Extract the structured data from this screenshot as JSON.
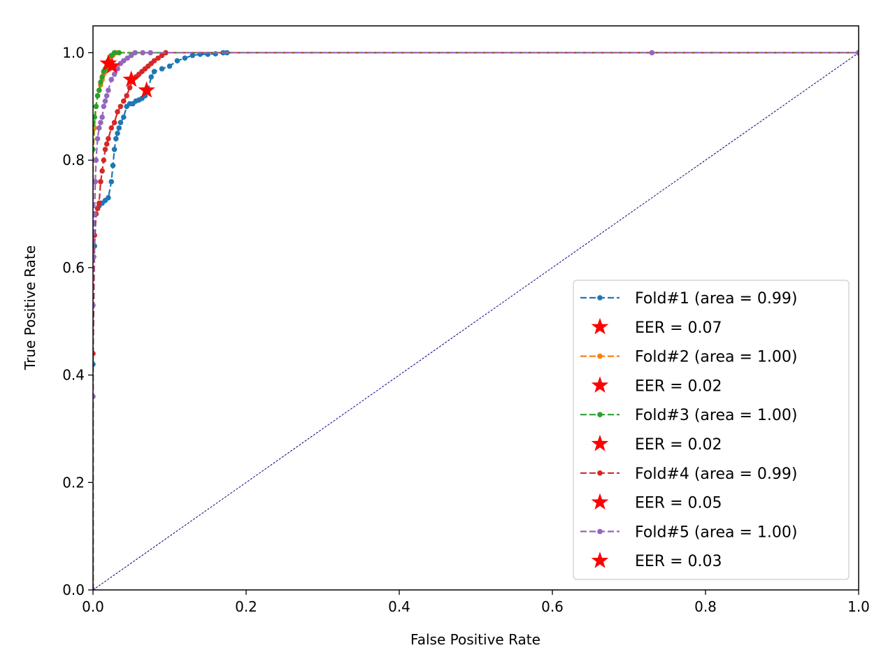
{
  "chart_data": {
    "type": "line",
    "title": "",
    "xlabel": "False Positive Rate",
    "ylabel": "True Positive Rate",
    "xlim": [
      0.0,
      1.0
    ],
    "ylim": [
      0.0,
      1.05
    ],
    "xticks": [
      "0.0",
      "0.2",
      "0.4",
      "0.6",
      "0.8",
      "1.0"
    ],
    "yticks": [
      "0.0",
      "0.2",
      "0.4",
      "0.6",
      "0.8",
      "1.0"
    ],
    "grid": false,
    "legend_position": "lower right",
    "chance_line": {
      "x": [
        0,
        1
      ],
      "y": [
        0,
        1
      ],
      "color": "#000080"
    },
    "series": [
      {
        "name": "Fold#1 (area = 0.99)",
        "color": "#1f77b4",
        "eer_label": "EER = 0.07",
        "eer_point": [
          0.07,
          0.93
        ],
        "x": [
          0.0,
          0.0,
          0.002,
          0.004,
          0.006,
          0.008,
          0.01,
          0.012,
          0.016,
          0.02,
          0.024,
          0.026,
          0.028,
          0.03,
          0.032,
          0.034,
          0.036,
          0.04,
          0.044,
          0.048,
          0.052,
          0.056,
          0.06,
          0.064,
          0.068,
          0.072,
          0.076,
          0.08,
          0.09,
          0.1,
          0.11,
          0.12,
          0.13,
          0.14,
          0.15,
          0.16,
          0.17,
          0.175,
          1.0
        ],
        "y": [
          0.0,
          0.42,
          0.64,
          0.7,
          0.71,
          0.715,
          0.72,
          0.72,
          0.725,
          0.73,
          0.76,
          0.79,
          0.82,
          0.84,
          0.85,
          0.86,
          0.87,
          0.88,
          0.9,
          0.905,
          0.905,
          0.91,
          0.912,
          0.915,
          0.92,
          0.93,
          0.955,
          0.965,
          0.97,
          0.975,
          0.985,
          0.99,
          0.995,
          0.997,
          0.997,
          0.998,
          1.0,
          1.0,
          1.0
        ]
      },
      {
        "name": "Fold#2 (area = 1.00)",
        "color": "#ff7f0e",
        "eer_label": "EER = 0.02",
        "eer_point": [
          0.02,
          0.98
        ],
        "x": [
          0.0,
          0.0,
          0.002,
          0.004,
          0.006,
          0.008,
          0.01,
          0.012,
          0.014,
          0.016,
          0.018,
          0.02,
          0.022,
          0.026,
          0.03,
          1.0
        ],
        "y": [
          0.0,
          0.8,
          0.86,
          0.9,
          0.92,
          0.93,
          0.94,
          0.95,
          0.96,
          0.965,
          0.97,
          0.98,
          0.99,
          0.995,
          1.0,
          1.0
        ]
      },
      {
        "name": "Fold#3 (area = 1.00)",
        "color": "#2ca02c",
        "eer_label": "EER = 0.02",
        "eer_point": [
          0.02,
          0.98
        ],
        "x": [
          0.0,
          0.0,
          0.002,
          0.004,
          0.006,
          0.008,
          0.01,
          0.012,
          0.014,
          0.016,
          0.018,
          0.02,
          0.024,
          0.028,
          0.034,
          1.0
        ],
        "y": [
          0.0,
          0.82,
          0.88,
          0.9,
          0.92,
          0.93,
          0.945,
          0.955,
          0.965,
          0.97,
          0.975,
          0.985,
          0.995,
          1.0,
          1.0,
          1.0
        ]
      },
      {
        "name": "Fold#4 (area = 0.99)",
        "color": "#d62728",
        "eer_label": "EER = 0.05",
        "eer_point": [
          0.05,
          0.95
        ],
        "x": [
          0.0,
          0.0,
          0.002,
          0.004,
          0.006,
          0.008,
          0.01,
          0.012,
          0.014,
          0.016,
          0.018,
          0.02,
          0.024,
          0.028,
          0.032,
          0.036,
          0.04,
          0.044,
          0.048,
          0.052,
          0.056,
          0.06,
          0.064,
          0.068,
          0.072,
          0.076,
          0.08,
          0.085,
          0.09,
          0.095,
          1.0
        ],
        "y": [
          0.0,
          0.44,
          0.66,
          0.7,
          0.71,
          0.72,
          0.76,
          0.78,
          0.8,
          0.82,
          0.83,
          0.84,
          0.86,
          0.87,
          0.89,
          0.9,
          0.91,
          0.92,
          0.935,
          0.95,
          0.955,
          0.96,
          0.965,
          0.97,
          0.975,
          0.98,
          0.985,
          0.99,
          0.995,
          1.0,
          1.0
        ]
      },
      {
        "name": "Fold#5 (area = 1.00)",
        "color": "#9467bd",
        "eer_label": "EER = 0.03",
        "eer_point": [
          0.025,
          0.975
        ],
        "x": [
          0.0,
          0.0,
          0.0,
          0.001,
          0.002,
          0.003,
          0.004,
          0.006,
          0.008,
          0.01,
          0.012,
          0.014,
          0.016,
          0.018,
          0.02,
          0.024,
          0.028,
          0.032,
          0.036,
          0.04,
          0.045,
          0.05,
          0.055,
          0.065,
          0.075,
          0.73,
          1.0
        ],
        "y": [
          0.0,
          0.36,
          0.53,
          0.62,
          0.7,
          0.76,
          0.8,
          0.84,
          0.86,
          0.87,
          0.88,
          0.9,
          0.91,
          0.92,
          0.93,
          0.95,
          0.96,
          0.97,
          0.98,
          0.985,
          0.99,
          0.995,
          1.0,
          1.0,
          1.0,
          1.0,
          1.0
        ]
      }
    ]
  }
}
